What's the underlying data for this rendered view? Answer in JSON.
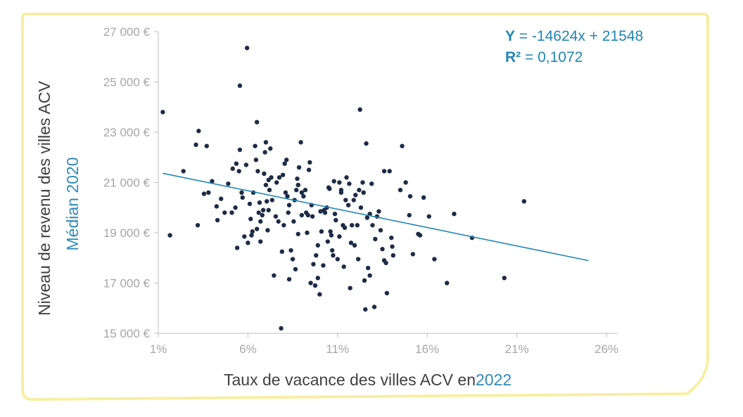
{
  "chart_data": {
    "type": "scatter",
    "xlabel": "Taux de vacance des villes ACV en",
    "xlabel_year": "2022",
    "ylabel": "Niveau de revenu des villes ACV",
    "ylabel_sub": "Médian 2020",
    "x_ticks": [
      "1%",
      "6%",
      "11%",
      "16%",
      "21%",
      "26%"
    ],
    "y_ticks": [
      "27 000 €",
      "25 000 €",
      "23 000 €",
      "21 000 €",
      "19 000 €",
      "17 000 €",
      "15 000 €"
    ],
    "xlim": [
      0.01,
      0.26
    ],
    "ylim": [
      15000,
      27000
    ],
    "grid": false,
    "equation": "Y = -14624x + 21548",
    "equation_prefix": "Y",
    "equation_rest": " = -14624x + 21548",
    "r2_prefix": "R²",
    "r2_rest": " = 0,1072",
    "trendline": {
      "slope": -14624,
      "intercept": 21548,
      "x_start": 0.0125,
      "x_end": 0.25
    },
    "colors": {
      "points": "#1e2b45",
      "trendline": "#1f86b5",
      "frame": "#f6efa2",
      "accent": "#2e8bb8"
    },
    "points": [
      [
        0.0125,
        23800
      ],
      [
        0.0165,
        18900
      ],
      [
        0.024,
        21450
      ],
      [
        0.031,
        22500
      ],
      [
        0.032,
        19300
      ],
      [
        0.0325,
        23050
      ],
      [
        0.0355,
        20550
      ],
      [
        0.037,
        22450
      ],
      [
        0.038,
        20600
      ],
      [
        0.04,
        21050
      ],
      [
        0.0425,
        20050
      ],
      [
        0.043,
        19500
      ],
      [
        0.045,
        20350
      ],
      [
        0.047,
        19800
      ],
      [
        0.049,
        20950
      ],
      [
        0.051,
        19800
      ],
      [
        0.0515,
        21550
      ],
      [
        0.053,
        20000
      ],
      [
        0.0535,
        21750
      ],
      [
        0.054,
        18400
      ],
      [
        0.055,
        21450
      ],
      [
        0.0555,
        22300
      ],
      [
        0.0555,
        24850
      ],
      [
        0.0565,
        20600
      ],
      [
        0.057,
        20400
      ],
      [
        0.058,
        18850
      ],
      [
        0.059,
        21700
      ],
      [
        0.0595,
        26350
      ],
      [
        0.06,
        18600
      ],
      [
        0.061,
        20150
      ],
      [
        0.0615,
        19550
      ],
      [
        0.062,
        18900
      ],
      [
        0.0625,
        19050
      ],
      [
        0.063,
        20600
      ],
      [
        0.064,
        22450
      ],
      [
        0.0645,
        21900
      ],
      [
        0.065,
        23400
      ],
      [
        0.065,
        19150
      ],
      [
        0.0655,
        21450
      ],
      [
        0.066,
        19800
      ],
      [
        0.0665,
        20200
      ],
      [
        0.067,
        19450
      ],
      [
        0.067,
        18650
      ],
      [
        0.068,
        19700
      ],
      [
        0.0685,
        19900
      ],
      [
        0.069,
        21350
      ],
      [
        0.0695,
        22200
      ],
      [
        0.07,
        22600
      ],
      [
        0.07,
        20900
      ],
      [
        0.0705,
        20250
      ],
      [
        0.071,
        19100
      ],
      [
        0.0715,
        19900
      ],
      [
        0.0715,
        21100
      ],
      [
        0.072,
        20700
      ],
      [
        0.0725,
        22350
      ],
      [
        0.073,
        21200
      ],
      [
        0.0735,
        20300
      ],
      [
        0.0745,
        17300
      ],
      [
        0.0755,
        19650
      ],
      [
        0.076,
        21000
      ],
      [
        0.077,
        19450
      ],
      [
        0.0775,
        21200
      ],
      [
        0.0785,
        15200
      ],
      [
        0.079,
        18250
      ],
      [
        0.0795,
        21300
      ],
      [
        0.08,
        19300
      ],
      [
        0.0805,
        21750
      ],
      [
        0.081,
        20600
      ],
      [
        0.0815,
        21900
      ],
      [
        0.082,
        20450
      ],
      [
        0.0825,
        19800
      ],
      [
        0.083,
        17150
      ],
      [
        0.083,
        20100
      ],
      [
        0.084,
        18300
      ],
      [
        0.085,
        17950
      ],
      [
        0.0855,
        19450
      ],
      [
        0.086,
        20300
      ],
      [
        0.0865,
        17550
      ],
      [
        0.087,
        20700
      ],
      [
        0.0875,
        21150
      ],
      [
        0.088,
        20900
      ],
      [
        0.088,
        18950
      ],
      [
        0.0885,
        21600
      ],
      [
        0.0895,
        22600
      ],
      [
        0.09,
        20600
      ],
      [
        0.09,
        19700
      ],
      [
        0.091,
        20450
      ],
      [
        0.092,
        20700
      ],
      [
        0.0925,
        19800
      ],
      [
        0.093,
        19000
      ],
      [
        0.0935,
        19700
      ],
      [
        0.094,
        21500
      ],
      [
        0.0945,
        21800
      ],
      [
        0.095,
        17000
      ],
      [
        0.0955,
        20100
      ],
      [
        0.096,
        19650
      ],
      [
        0.0965,
        17750
      ],
      [
        0.0975,
        16900
      ],
      [
        0.098,
        18100
      ],
      [
        0.099,
        17200
      ],
      [
        0.099,
        18500
      ],
      [
        0.1,
        16550
      ],
      [
        0.1005,
        19850
      ],
      [
        0.101,
        19050
      ],
      [
        0.102,
        17700
      ],
      [
        0.1025,
        19900
      ],
      [
        0.103,
        19800
      ],
      [
        0.104,
        20000
      ],
      [
        0.1045,
        18650
      ],
      [
        0.105,
        20800
      ],
      [
        0.1055,
        20750
      ],
      [
        0.106,
        19050
      ],
      [
        0.1065,
        18900
      ],
      [
        0.107,
        18300
      ],
      [
        0.1075,
        18100
      ],
      [
        0.108,
        21050
      ],
      [
        0.1085,
        19750
      ],
      [
        0.109,
        19500
      ],
      [
        0.11,
        17950
      ],
      [
        0.111,
        21000
      ],
      [
        0.111,
        18850
      ],
      [
        0.112,
        20700
      ],
      [
        0.112,
        20600
      ],
      [
        0.113,
        19300
      ],
      [
        0.1135,
        17650
      ],
      [
        0.114,
        19200
      ],
      [
        0.1145,
        20300
      ],
      [
        0.115,
        21200
      ],
      [
        0.116,
        20100
      ],
      [
        0.1165,
        20950
      ],
      [
        0.117,
        16800
      ],
      [
        0.1175,
        18600
      ],
      [
        0.118,
        19300
      ],
      [
        0.119,
        20300
      ],
      [
        0.1195,
        18500
      ],
      [
        0.12,
        20500
      ],
      [
        0.121,
        19300
      ],
      [
        0.1215,
        17950
      ],
      [
        0.122,
        20700
      ],
      [
        0.1225,
        23900
      ],
      [
        0.123,
        20000
      ],
      [
        0.124,
        21000
      ],
      [
        0.1245,
        20600
      ],
      [
        0.125,
        17100
      ],
      [
        0.1255,
        15950
      ],
      [
        0.126,
        22550
      ],
      [
        0.1265,
        19600
      ],
      [
        0.127,
        17600
      ],
      [
        0.128,
        19750
      ],
      [
        0.128,
        17300
      ],
      [
        0.129,
        20950
      ],
      [
        0.1295,
        19300
      ],
      [
        0.1305,
        16050
      ],
      [
        0.131,
        18750
      ],
      [
        0.132,
        19650
      ],
      [
        0.133,
        19850
      ],
      [
        0.134,
        19100
      ],
      [
        0.135,
        18350
      ],
      [
        0.136,
        21450
      ],
      [
        0.136,
        17900
      ],
      [
        0.137,
        17800
      ],
      [
        0.1375,
        16600
      ],
      [
        0.139,
        21450
      ],
      [
        0.14,
        18800
      ],
      [
        0.1405,
        18450
      ],
      [
        0.141,
        18100
      ],
      [
        0.145,
        20700
      ],
      [
        0.146,
        22450
      ],
      [
        0.148,
        21000
      ],
      [
        0.15,
        19700
      ],
      [
        0.1505,
        20450
      ],
      [
        0.152,
        18150
      ],
      [
        0.155,
        18950
      ],
      [
        0.156,
        18900
      ],
      [
        0.158,
        20400
      ],
      [
        0.161,
        19650
      ],
      [
        0.164,
        17950
      ],
      [
        0.171,
        17000
      ],
      [
        0.175,
        19750
      ],
      [
        0.185,
        18800
      ],
      [
        0.203,
        17200
      ],
      [
        0.214,
        20250
      ]
    ]
  }
}
